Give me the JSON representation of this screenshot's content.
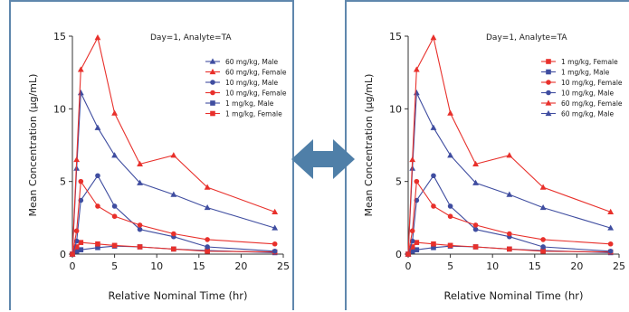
{
  "panels": [
    {
      "id": "left",
      "legend_order": [
        "s60M",
        "s60F",
        "s10M",
        "s10F",
        "s1M",
        "s1F"
      ]
    },
    {
      "id": "right",
      "legend_order": [
        "s1F",
        "s1M",
        "s10F",
        "s10M",
        "s60F",
        "s60M"
      ]
    }
  ],
  "swap_arrow": {
    "icon": "double-headed-arrow-icon",
    "color": "#4f7fa8"
  },
  "chart_data": {
    "type": "line",
    "title": "Day=1, Analyte=TA",
    "xlabel": "Relative Nominal Time (hr)",
    "ylabel": "Mean Concentration (µg/mL)",
    "xlim": [
      0,
      25
    ],
    "ylim": [
      0,
      15
    ],
    "xticks": [
      "0",
      "5",
      "10",
      "15",
      "20",
      "25"
    ],
    "yticks": [
      "0",
      "5",
      "10",
      "15"
    ],
    "grid": false,
    "legend_position": "right",
    "series": {
      "s60M": {
        "name": "60 mg/kg, Male",
        "color": "#3f4da0",
        "marker": "triangle",
        "x": [
          0,
          0.5,
          1,
          3,
          5,
          8,
          12,
          16,
          24
        ],
        "y": [
          0,
          5.9,
          11.1,
          8.7,
          6.8,
          4.9,
          4.1,
          3.2,
          1.8
        ]
      },
      "s60F": {
        "name": "60 mg/kg, Female",
        "color": "#e8302b",
        "marker": "triangle",
        "x": [
          0,
          0.5,
          1,
          3,
          5,
          8,
          12,
          16,
          24
        ],
        "y": [
          0,
          6.5,
          12.7,
          14.9,
          9.7,
          6.2,
          6.8,
          4.6,
          2.9
        ]
      },
      "s10M": {
        "name": "10 mg/kg, Male",
        "color": "#3f4da0",
        "marker": "circle",
        "x": [
          0,
          0.5,
          1,
          3,
          5,
          8,
          12,
          16,
          24
        ],
        "y": [
          0,
          0.9,
          3.7,
          5.4,
          3.3,
          1.7,
          1.2,
          0.5,
          0.2
        ]
      },
      "s10F": {
        "name": "10 mg/kg, Female",
        "color": "#e8302b",
        "marker": "circle",
        "x": [
          0,
          0.5,
          1,
          3,
          5,
          8,
          12,
          16,
          24
        ],
        "y": [
          0,
          1.6,
          5.0,
          3.3,
          2.6,
          2.0,
          1.4,
          1.0,
          0.7
        ]
      },
      "s1M": {
        "name": "1 mg/kg, Male",
        "color": "#3f4da0",
        "marker": "square",
        "x": [
          0,
          0.5,
          1,
          3,
          5,
          8,
          12,
          16,
          24
        ],
        "y": [
          0,
          0.2,
          0.3,
          0.45,
          0.55,
          0.5,
          0.35,
          0.25,
          0.1
        ]
      },
      "s1F": {
        "name": "1 mg/kg, Female",
        "color": "#e8302b",
        "marker": "square",
        "x": [
          0,
          0.5,
          1,
          3,
          5,
          8,
          12,
          16,
          24
        ],
        "y": [
          0,
          0.5,
          0.8,
          0.7,
          0.6,
          0.5,
          0.35,
          0.2,
          0.15
        ]
      }
    }
  }
}
